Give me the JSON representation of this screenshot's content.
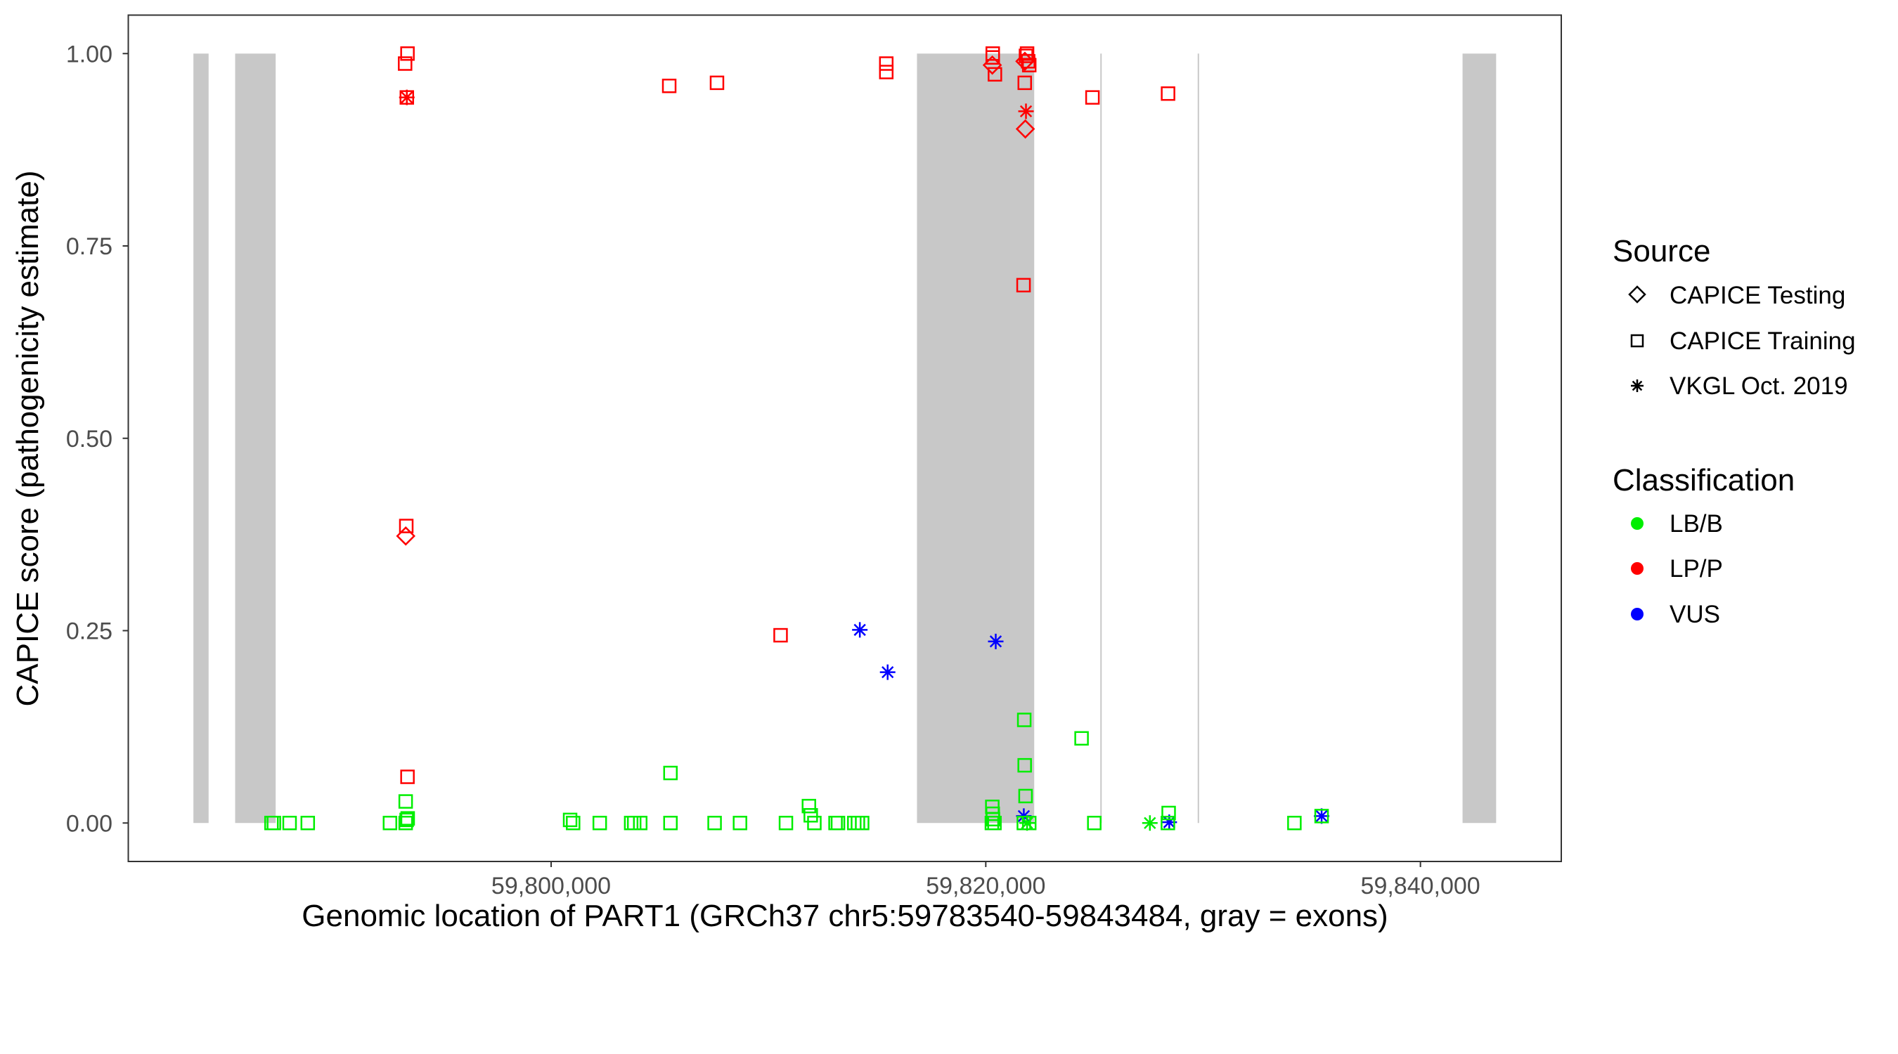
{
  "chart_data": {
    "type": "scatter",
    "xlabel": "Genomic location of PART1 (GRCh37 chr5:59783540-59843484, gray = exons)",
    "ylabel": "CAPICE score (pathogenicity estimate)",
    "xlim": [
      59780543,
      59846481
    ],
    "ylim": [
      -0.05,
      1.05
    ],
    "x_ticks": [
      59800000,
      59820000,
      59840000
    ],
    "x_tick_labels": [
      "59,800,000",
      "59,820,000",
      "59,840,000"
    ],
    "y_ticks": [
      0,
      0.25,
      0.5,
      0.75,
      1.0
    ],
    "y_tick_labels": [
      "0.00",
      "0.25",
      "0.50",
      "0.75",
      "1.00"
    ],
    "grid": false,
    "exons": [
      [
        59783540,
        59784239
      ],
      [
        59785460,
        59787325
      ],
      [
        59816834,
        59822229
      ],
      [
        59825270,
        59825330
      ],
      [
        59829750,
        59829800
      ],
      [
        59841938,
        59843484
      ]
    ],
    "exon_color": "#c8c8c8",
    "legend": {
      "placement": "right",
      "source_title": "Source",
      "source_items": [
        {
          "label": "CAPICE Testing",
          "shape": "diamond"
        },
        {
          "label": "CAPICE Training",
          "shape": "square"
        },
        {
          "label": "VKGL Oct. 2019",
          "shape": "asterisk"
        }
      ],
      "class_title": "Classification",
      "class_items": [
        {
          "label": "LB/B",
          "color": "#00ee00"
        },
        {
          "label": "LP/P",
          "color": "#ff0000"
        },
        {
          "label": "VUS",
          "color": "#0000ff"
        }
      ]
    },
    "points": [
      [
        59793390,
        1.0,
        "square",
        "LP/P"
      ],
      [
        59793280,
        0.987,
        "square",
        "LP/P"
      ],
      [
        59793360,
        0.943,
        "square",
        "LP/P"
      ],
      [
        59793360,
        0.943,
        "asterisk",
        "LP/P"
      ],
      [
        59805434,
        0.958,
        "square",
        "LP/P"
      ],
      [
        59807632,
        0.962,
        "square",
        "LP/P"
      ],
      [
        59815422,
        0.987,
        "square",
        "LP/P"
      ],
      [
        59815422,
        0.976,
        "square",
        "LP/P"
      ],
      [
        59793335,
        0.386,
        "square",
        "LP/P"
      ],
      [
        59793310,
        0.373,
        "diamond",
        "LP/P"
      ],
      [
        59793390,
        0.06,
        "square",
        "LP/P"
      ],
      [
        59810558,
        0.244,
        "square",
        "LP/P"
      ],
      [
        59820320,
        1.0,
        "square",
        "LP/P"
      ],
      [
        59820320,
        0.995,
        "square",
        "LP/P"
      ],
      [
        59820300,
        0.985,
        "diamond",
        "LP/P"
      ],
      [
        59820420,
        0.973,
        "square",
        "LP/P"
      ],
      [
        59821900,
        1.0,
        "square",
        "LP/P"
      ],
      [
        59821850,
        0.997,
        "square",
        "LP/P"
      ],
      [
        59821950,
        0.99,
        "square",
        "LP/P"
      ],
      [
        59822000,
        0.985,
        "square",
        "LP/P"
      ],
      [
        59821800,
        0.99,
        "diamond",
        "LP/P"
      ],
      [
        59821793,
        0.962,
        "square",
        "LP/P"
      ],
      [
        59821850,
        0.925,
        "asterisk",
        "LP/P"
      ],
      [
        59821820,
        0.902,
        "diamond",
        "LP/P"
      ],
      [
        59821738,
        0.699,
        "square",
        "LP/P"
      ],
      [
        59824909,
        0.943,
        "square",
        "LP/P"
      ],
      [
        59828387,
        0.948,
        "square",
        "LP/P"
      ],
      [
        59814204,
        0.251,
        "asterisk",
        "VUS"
      ],
      [
        59815484,
        0.196,
        "asterisk",
        "VUS"
      ],
      [
        59820458,
        0.236,
        "asterisk",
        "VUS"
      ],
      [
        59821750,
        0.009,
        "asterisk",
        "VUS"
      ],
      [
        59828442,
        0.001,
        "asterisk",
        "VUS"
      ],
      [
        59835453,
        0.009,
        "asterisk",
        "VUS"
      ],
      [
        59787132,
        0.0,
        "square",
        "LB/B"
      ],
      [
        59787243,
        0.0,
        "square",
        "LB/B"
      ],
      [
        59787966,
        0.0,
        "square",
        "LB/B"
      ],
      [
        59788801,
        0.0,
        "square",
        "LB/B"
      ],
      [
        59792584,
        0.0,
        "square",
        "LB/B"
      ],
      [
        59793307,
        0.0,
        "square",
        "LB/B"
      ],
      [
        59793350,
        0.004,
        "square",
        "LB/B"
      ],
      [
        59793400,
        0.006,
        "square",
        "LB/B"
      ],
      [
        59793307,
        0.028,
        "square",
        "LB/B"
      ],
      [
        59800873,
        0.004,
        "square",
        "LB/B"
      ],
      [
        59801012,
        0.0,
        "square",
        "LB/B"
      ],
      [
        59802237,
        0.0,
        "square",
        "LB/B"
      ],
      [
        59803683,
        0.0,
        "square",
        "LB/B"
      ],
      [
        59803822,
        0.0,
        "square",
        "LB/B"
      ],
      [
        59804100,
        0.0,
        "square",
        "LB/B"
      ],
      [
        59805491,
        0.0,
        "square",
        "LB/B"
      ],
      [
        59805491,
        0.065,
        "square",
        "LB/B"
      ],
      [
        59807522,
        0.0,
        "square",
        "LB/B"
      ],
      [
        59808691,
        0.0,
        "square",
        "LB/B"
      ],
      [
        59810805,
        0.0,
        "square",
        "LB/B"
      ],
      [
        59811862,
        0.022,
        "square",
        "LB/B"
      ],
      [
        59811946,
        0.01,
        "square",
        "LB/B"
      ],
      [
        59812113,
        0.0,
        "square",
        "LB/B"
      ],
      [
        59813086,
        0.0,
        "square",
        "LB/B"
      ],
      [
        59813198,
        0.0,
        "square",
        "LB/B"
      ],
      [
        59813949,
        0.0,
        "square",
        "LB/B"
      ],
      [
        59814116,
        0.0,
        "square",
        "LB/B"
      ],
      [
        59814311,
        0.0,
        "square",
        "LB/B"
      ],
      [
        59820300,
        0.021,
        "square",
        "LB/B"
      ],
      [
        59820320,
        0.012,
        "square",
        "LB/B"
      ],
      [
        59820330,
        0.005,
        "square",
        "LB/B"
      ],
      [
        59820280,
        0.0,
        "square",
        "LB/B"
      ],
      [
        59820400,
        0.0,
        "square",
        "LB/B"
      ],
      [
        59821770,
        0.134,
        "square",
        "LB/B"
      ],
      [
        59821790,
        0.075,
        "square",
        "LB/B"
      ],
      [
        59821830,
        0.035,
        "square",
        "LB/B"
      ],
      [
        59821750,
        0.0,
        "square",
        "LB/B"
      ],
      [
        59822000,
        0.0,
        "square",
        "LB/B"
      ],
      [
        59821900,
        0.0,
        "asterisk",
        "LB/B"
      ],
      [
        59824408,
        0.11,
        "square",
        "LB/B"
      ],
      [
        59824993,
        0.0,
        "square",
        "LB/B"
      ],
      [
        59827552,
        0.0,
        "asterisk",
        "LB/B"
      ],
      [
        59828415,
        0.013,
        "square",
        "LB/B"
      ],
      [
        59828380,
        0.0,
        "square",
        "LB/B"
      ],
      [
        59834201,
        0.0,
        "square",
        "LB/B"
      ],
      [
        59835453,
        0.009,
        "square",
        "LB/B"
      ]
    ]
  }
}
